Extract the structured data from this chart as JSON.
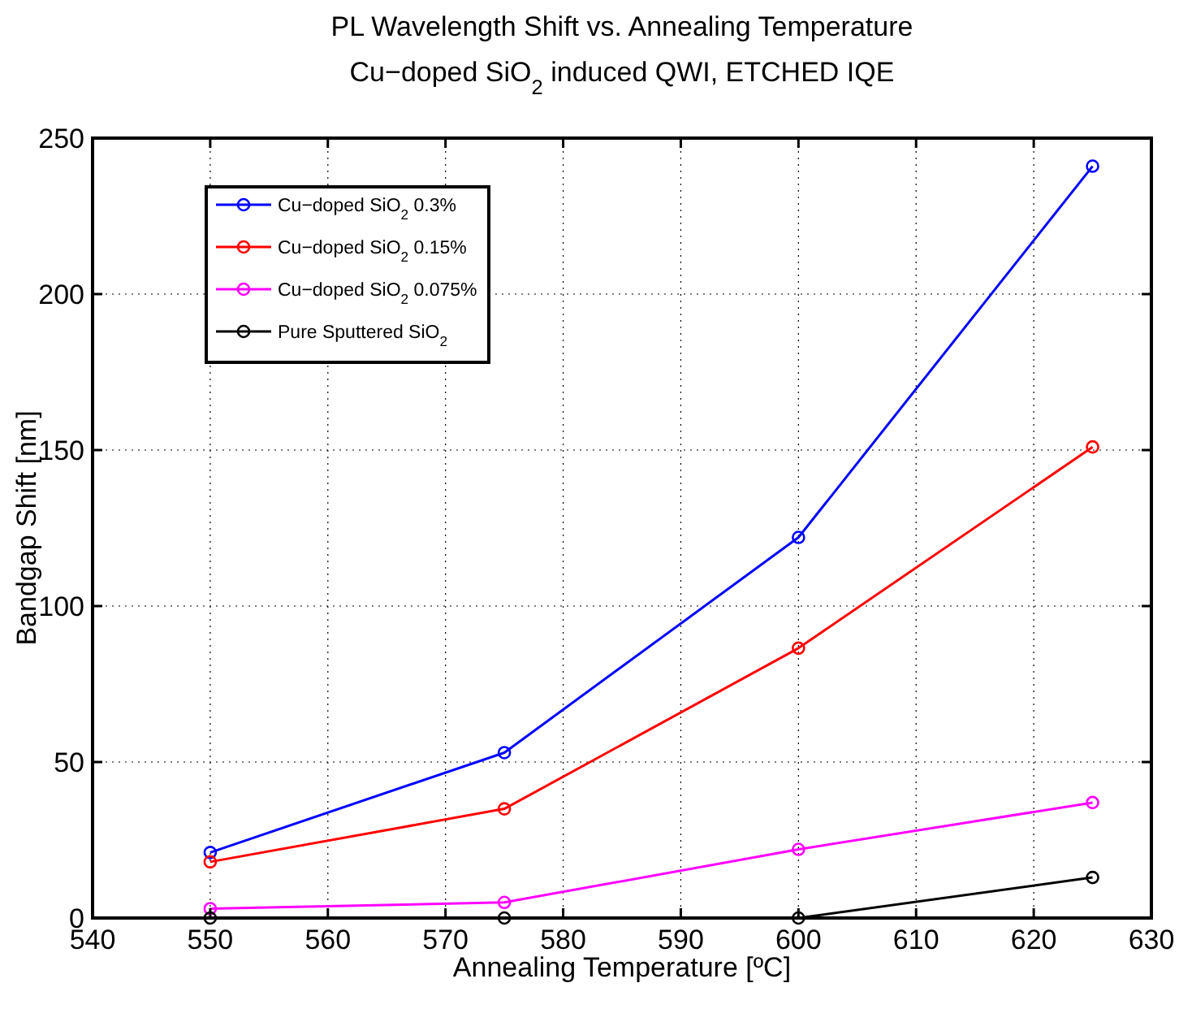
{
  "chart_data": {
    "type": "line",
    "title": "PL Wavelength Shift vs. Annealing Temperature",
    "subtitle": "Cu−doped SiO$_{2}$ induced QWI, ETCHED IQE",
    "xlabel": "Annealing Temperature [ºC]",
    "ylabel": "Bandgap Shift [nm]",
    "x": [
      550,
      575,
      600,
      625
    ],
    "series": [
      {
        "name": "Cu−doped SiO$_{2}$ 0.3%",
        "color": "#0000ff",
        "values": [
          21,
          53,
          122,
          241
        ]
      },
      {
        "name": "Cu−doped SiO$_{2}$ 0.15%",
        "color": "#ff0000",
        "values": [
          18,
          35,
          86.5,
          151
        ]
      },
      {
        "name": "Cu−doped SiO$_{2}$ 0.075%",
        "color": "#ff00ff",
        "values": [
          3,
          5,
          22,
          37
        ]
      },
      {
        "name": "Pure Sputtered SiO$_{2}$",
        "color": "#000000",
        "values": [
          0,
          0,
          0,
          13
        ]
      }
    ],
    "xlim": [
      540,
      630
    ],
    "xticks": [
      540,
      550,
      560,
      570,
      580,
      590,
      600,
      610,
      620,
      630
    ],
    "ylim": [
      0,
      250
    ],
    "yticks": [
      0,
      50,
      100,
      150,
      200,
      250
    ],
    "grid": true,
    "legend": "top left",
    "marker": "circle",
    "line_style": "solid"
  }
}
